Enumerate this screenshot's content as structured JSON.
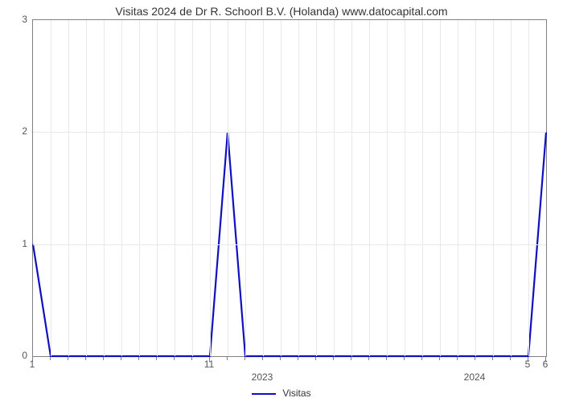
{
  "chart": {
    "type": "line",
    "title": "Visitas 2024 de Dr R. Schoorl B.V. (Holanda) www.datocapital.com",
    "title_fontsize": 14,
    "title_color": "#333333",
    "background_color": "#ffffff",
    "plot_border_color": "#808080",
    "grid_color": "#e8e8e8",
    "axis_label_color": "#555555",
    "axis_label_fontsize": 12,
    "y": {
      "lim": [
        0,
        3
      ],
      "ticks": [
        0,
        1,
        2,
        3
      ]
    },
    "x": {
      "n_points": 30,
      "major_tick_labels": [
        {
          "idx": 0,
          "label": "1"
        },
        {
          "idx": 10,
          "label": "11"
        },
        {
          "idx": 28,
          "label": "5"
        },
        {
          "idx": 29,
          "label": "6"
        }
      ],
      "minor_ticks_count": 30,
      "year_labels": [
        {
          "idx": 13,
          "label": "2023"
        },
        {
          "idx": 25,
          "label": "2024"
        }
      ]
    },
    "series": [
      {
        "name": "Visitas",
        "color": "#1010c0",
        "line_width": 2.2,
        "values": [
          1,
          0,
          0,
          0,
          0,
          0,
          0,
          0,
          0,
          0,
          0,
          2,
          0,
          0,
          0,
          0,
          0,
          0,
          0,
          0,
          0,
          0,
          0,
          0,
          0,
          0,
          0,
          0,
          0,
          2
        ]
      }
    ],
    "legend": {
      "label": "Visitas",
      "color": "#1010c0"
    }
  }
}
